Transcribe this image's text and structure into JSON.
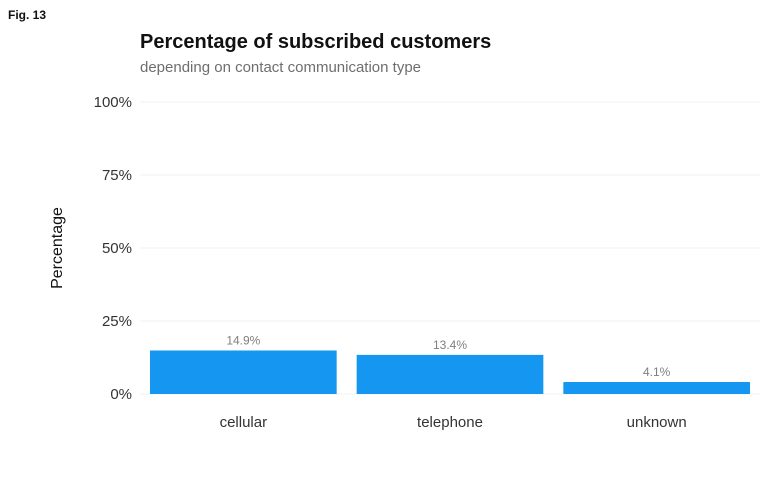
{
  "figure_label": "Fig. 13",
  "chart_data": {
    "type": "bar",
    "title": "Percentage of subscribed customers",
    "subtitle": "depending on contact communication type",
    "xlabel": "",
    "ylabel": "Percentage",
    "categories": [
      "cellular",
      "telephone",
      "unknown"
    ],
    "values": [
      14.9,
      13.4,
      4.1
    ],
    "data_labels": [
      "14.9%",
      "13.4%",
      "4.1%"
    ],
    "ylim": [
      0,
      100
    ],
    "yticks": [
      0,
      25,
      50,
      75,
      100
    ],
    "ytick_labels": [
      "0%",
      "25%",
      "50%",
      "75%",
      "100%"
    ],
    "grid": true,
    "legend": "none",
    "bar_color": "#1596f0"
  }
}
